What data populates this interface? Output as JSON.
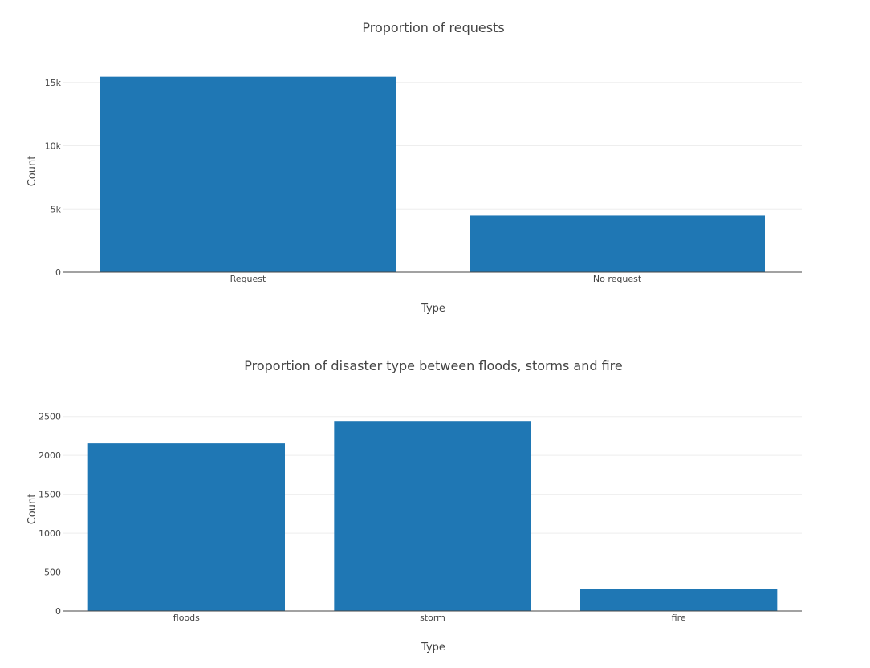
{
  "chart_data": [
    {
      "type": "bar",
      "title": "Proportion of requests",
      "xlabel": "Type",
      "ylabel": "Count",
      "categories": [
        "Request",
        "No request"
      ],
      "values": [
        15450,
        4480
      ],
      "ylim": [
        0,
        16000
      ],
      "yticks": [
        0,
        5000,
        10000,
        15000
      ],
      "ytick_labels": [
        "0",
        "5k",
        "10k",
        "15k"
      ],
      "grid": true,
      "color": "#1f77b4"
    },
    {
      "type": "bar",
      "title": "Proportion of disaster type between floods, storms and fire",
      "xlabel": "Type",
      "ylabel": "Count",
      "categories": [
        "floods",
        "storm",
        "fire"
      ],
      "values": [
        2155,
        2443,
        282
      ],
      "ylim": [
        0,
        2600
      ],
      "yticks": [
        0,
        500,
        1000,
        1500,
        2000,
        2500
      ],
      "ytick_labels": [
        "0",
        "500",
        "1000",
        "1500",
        "2000",
        "2500"
      ],
      "grid": true,
      "color": "#1f77b4"
    }
  ]
}
